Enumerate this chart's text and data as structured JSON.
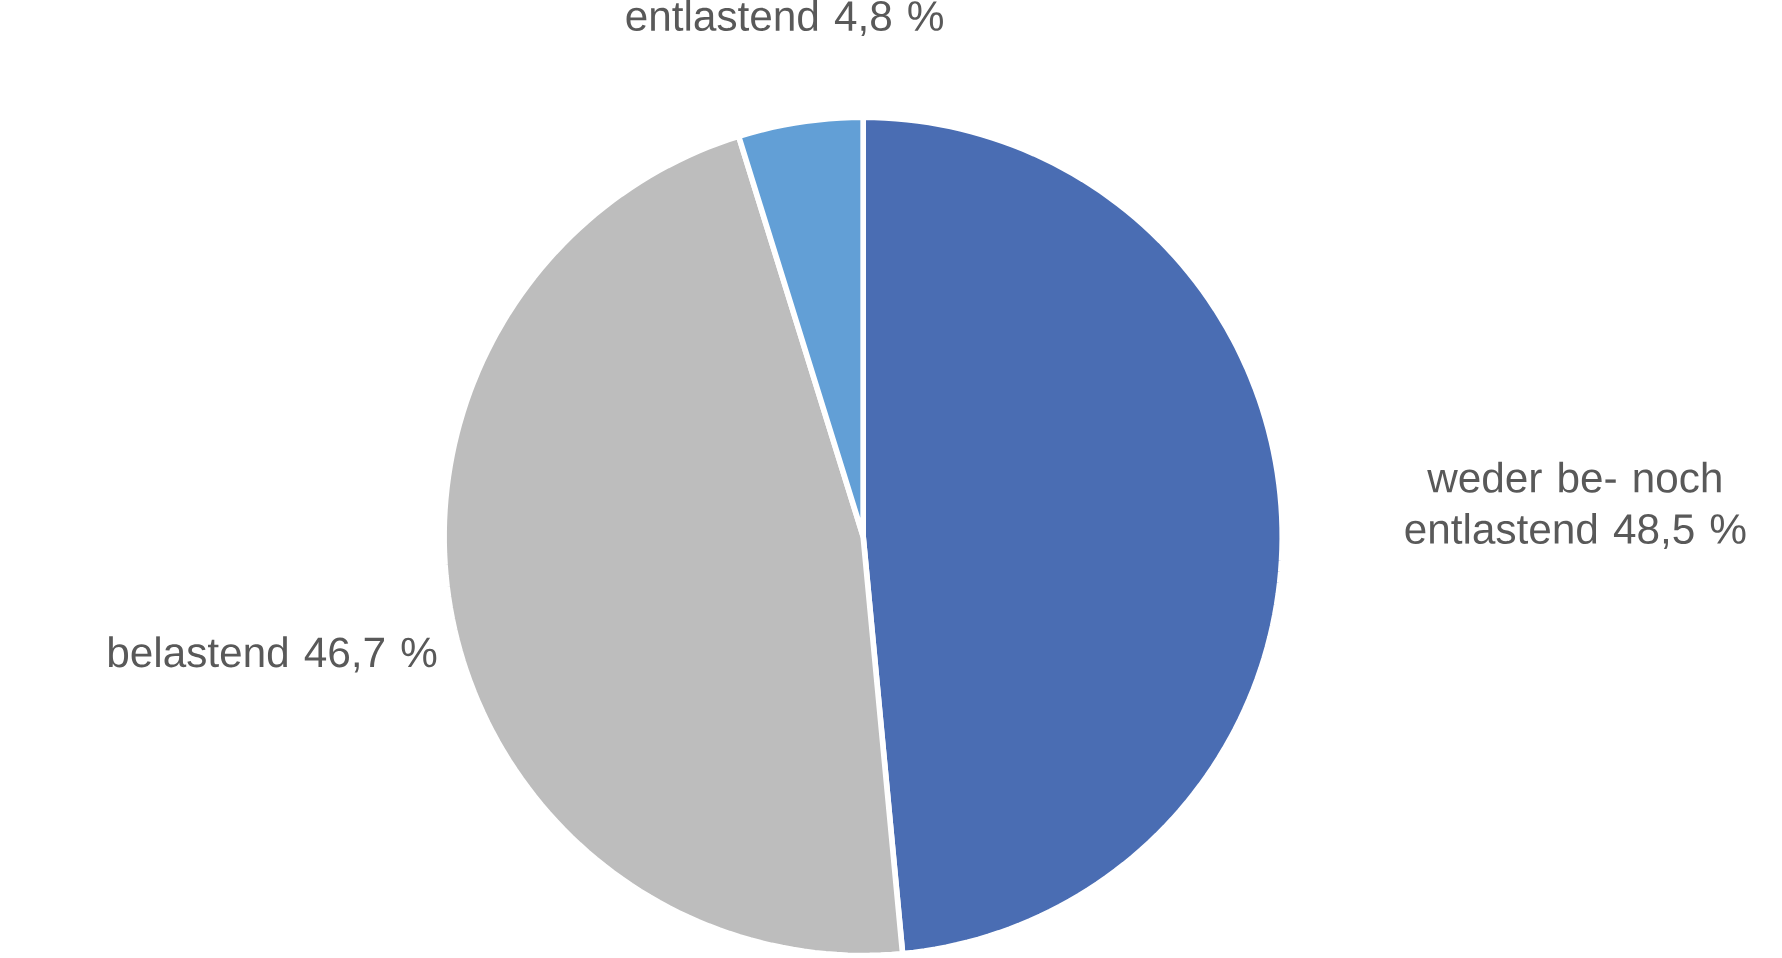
{
  "chart_data": {
    "type": "pie",
    "categories": [
      "weder be- noch entlastend",
      "belastend",
      "entlastend"
    ],
    "values": [
      48.5,
      46.7,
      4.8
    ],
    "value_labels": [
      "48,5 %",
      "46,7 %",
      "4,8 %"
    ],
    "colors": [
      "#4a6db3",
      "#bdbdbd",
      "#629fd6"
    ]
  }
}
